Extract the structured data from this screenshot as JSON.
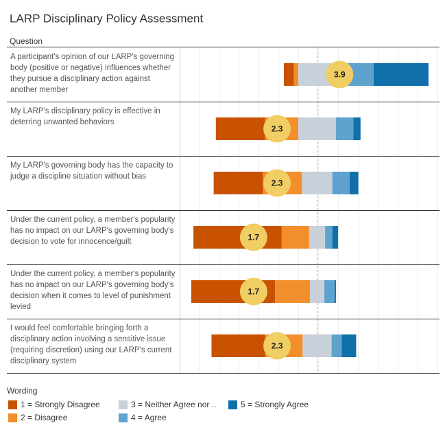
{
  "chart_data": {
    "type": "diverging_bar",
    "title": "LARP Disciplinary Policy Assessment",
    "column_header": "Question",
    "categories": [
      "A participant's opinion of our LARP's governing body (positive or negative) influences whether they pursue a disciplinary action against another member",
      "My LARP's disciplinary policy is effective in deterring unwanted behaviors",
      "My LARP's governing body has the capacity to judge a discipline situation without bias",
      "Under the current policy, a member's popularity has no impact on our LARP's governing body's decision to vote for innocence/guilt",
      "Under the current policy, a member's popularity has no impact on our LARP's governing body's decision when it comes to level of punishment levied",
      "I would feel comfortable bringing forth a disciplinary action involving a sensitive issue (requiring discretion) using our LARP's current disciplinary system"
    ],
    "series": [
      {
        "name": "1 = Strongly Disagree",
        "color": "#c85200",
        "values": [
          7,
          34,
          34,
          61,
          58,
          37
        ]
      },
      {
        "name": "2 = Disagree",
        "color": "#f28e2b",
        "values": [
          3,
          23,
          27,
          19,
          24,
          26
        ]
      },
      {
        "name": "3 = Neither Agree nor ..",
        "color": "#c8d0d9",
        "values": [
          26,
          26,
          21,
          11,
          10,
          20
        ]
      },
      {
        "name": "4 = Agree",
        "color": "#5fa2ce",
        "values": [
          26,
          12,
          12,
          5,
          7,
          7
        ]
      },
      {
        "name": "5 = Strongly Agree",
        "color": "#1170aa",
        "values": [
          38,
          5,
          6,
          4,
          1,
          10
        ]
      }
    ],
    "averages": [
      3.9,
      2.3,
      2.3,
      1.7,
      1.7,
      2.3
    ],
    "average_color": "#f1ce63",
    "legend_title": "Wording"
  }
}
